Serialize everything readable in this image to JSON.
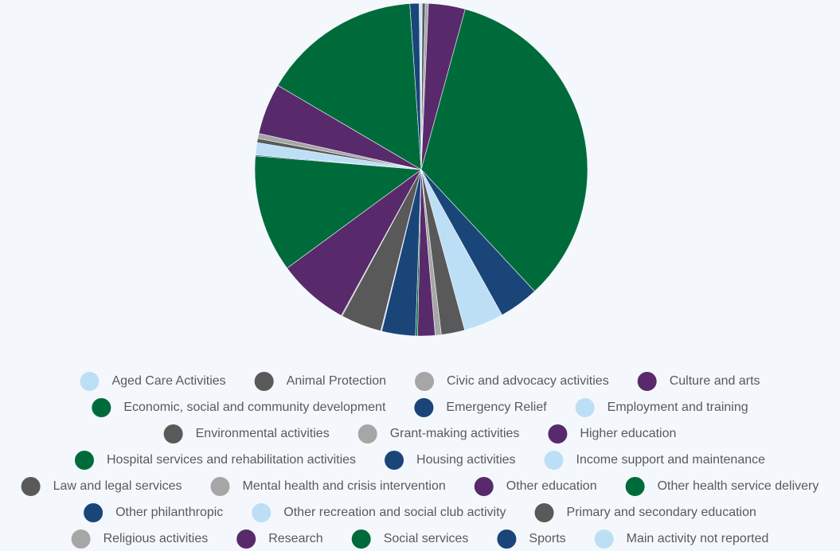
{
  "chart_data": {
    "type": "pie",
    "categories": [
      "Aged Care Activities",
      "Animal Protection",
      "Civic and advocacy activities",
      "Culture and arts",
      "Economic, social and community development",
      "Emergency Relief",
      "Employment and training",
      "Environmental activities",
      "Grant-making activities",
      "Higher education",
      "Hospital services and rehabilitation activities",
      "Housing activities",
      "Income support and maintenance",
      "Law and legal services",
      "Mental health and crisis intervention",
      "Other education",
      "Other health service delivery",
      "Other philanthropic",
      "Other recreation and social club activity",
      "Primary and secondary education",
      "Religious activities",
      "Research",
      "Social services",
      "Sports",
      "Main activity not reported"
    ],
    "values": [
      0.1,
      0.3,
      0.3,
      3.6,
      34.1,
      3.9,
      3.9,
      2.3,
      0.6,
      1.7,
      0.2,
      3.3,
      0.1,
      4.0,
      0.1,
      7.0,
      11.5,
      0.1,
      1.2,
      0.4,
      0.5,
      5.0,
      15.6,
      0.9,
      0.2
    ],
    "colors": [
      "#bddff5",
      "#595959",
      "#a6a6a6",
      "#582a6b",
      "#006b3a",
      "#1a4579",
      "#bddff5",
      "#595959",
      "#a6a6a6",
      "#582a6b",
      "#006b3a",
      "#1a4579",
      "#bddff5",
      "#595959",
      "#a6a6a6",
      "#582a6b",
      "#006b3a",
      "#1a4579",
      "#bddff5",
      "#595959",
      "#a6a6a6",
      "#582a6b",
      "#006b3a",
      "#1a4579",
      "#bddff5"
    ],
    "legend": "bottom"
  }
}
